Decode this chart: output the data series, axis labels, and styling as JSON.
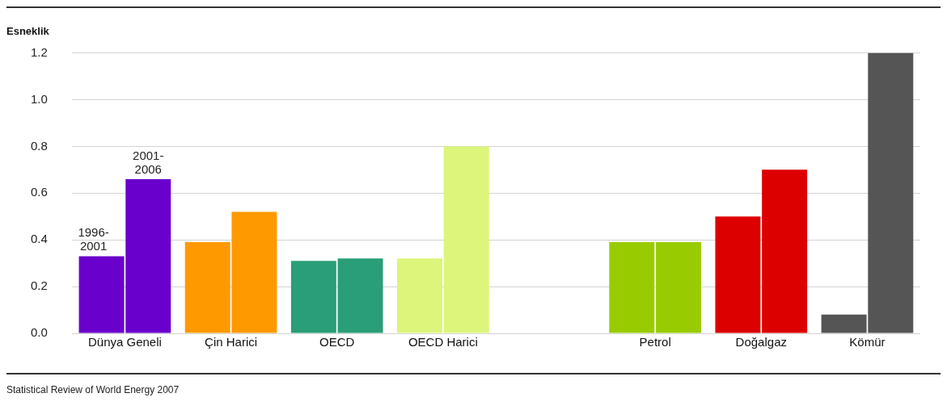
{
  "chart_data": {
    "type": "bar",
    "ylabel": "Esneklik",
    "categories": [
      "Dünya Geneli",
      "Çin Harici",
      "OECD",
      "OECD Harici",
      null,
      "Petrol",
      "Doğalgaz",
      "Kömür"
    ],
    "series": [
      {
        "name": "1996-2001",
        "colors": [
          "#6a00cc",
          "#ff9900",
          "#2a9e78",
          "#dcf57a",
          null,
          "#99cc00",
          "#dd0000",
          "#555555"
        ],
        "values": [
          0.33,
          0.39,
          0.31,
          0.32,
          null,
          0.39,
          0.5,
          0.08
        ]
      },
      {
        "name": "2001-2006",
        "colors": [
          "#6a00cc",
          "#ff9900",
          "#2a9e78",
          "#dcf57a",
          null,
          "#99cc00",
          "#dd0000",
          "#555555"
        ],
        "values": [
          0.66,
          0.52,
          0.32,
          0.8,
          null,
          0.39,
          0.7,
          1.2
        ]
      }
    ],
    "ylim": [
      0,
      1.2
    ],
    "yticks": [
      {
        "value": 0,
        "label": "0.0"
      },
      0.2,
      0.4,
      0.6,
      0.8,
      {
        "value": 1,
        "label": "1.0"
      },
      1.2
    ],
    "grid": "y",
    "legend": false,
    "annotations": [
      "Statistical Review of World Energy 2007"
    ]
  }
}
